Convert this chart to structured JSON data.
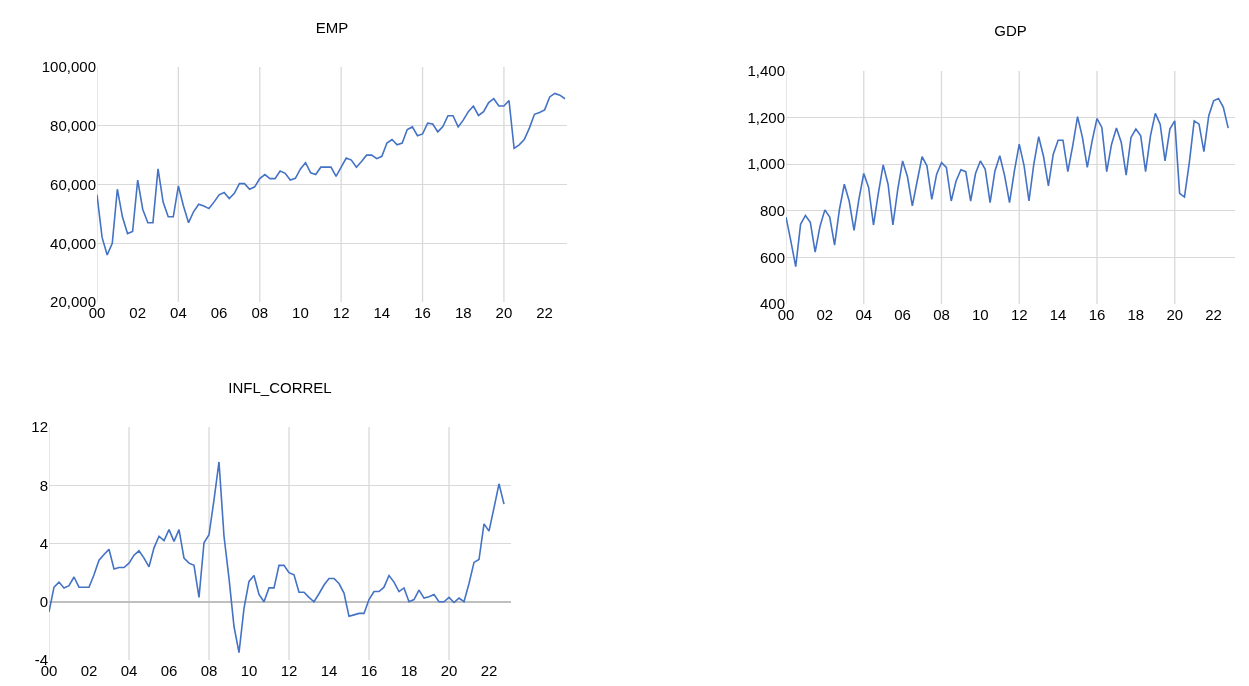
{
  "chart_data": [
    {
      "type": "line",
      "title": "EMP",
      "color": "#4472c4",
      "grid": true,
      "x": [
        2000,
        2000.25,
        2000.5,
        2000.75,
        2001,
        2001.25,
        2001.5,
        2001.75,
        2002,
        2002.25,
        2002.5,
        2002.75,
        2003,
        2003.25,
        2003.5,
        2003.75,
        2004,
        2004.25,
        2004.5,
        2004.75,
        2005,
        2005.25,
        2005.5,
        2005.75,
        2006,
        2006.25,
        2006.5,
        2006.75,
        2007,
        2007.25,
        2007.5,
        2007.75,
        2008,
        2008.25,
        2008.5,
        2008.75,
        2009,
        2009.25,
        2009.5,
        2009.75,
        2010,
        2010.25,
        2010.5,
        2010.75,
        2011,
        2011.25,
        2011.5,
        2011.75,
        2012,
        2012.25,
        2012.5,
        2012.75,
        2013,
        2013.25,
        2013.5,
        2013.75,
        2014,
        2014.25,
        2014.5,
        2014.75,
        2015,
        2015.25,
        2015.5,
        2015.75,
        2016,
        2016.25,
        2016.5,
        2016.75,
        2017,
        2017.25,
        2017.5,
        2017.75,
        2018,
        2018.25,
        2018.5,
        2018.75,
        2019,
        2019.25,
        2019.5,
        2019.75,
        2020,
        2020.25,
        2020.5,
        2020.75,
        2021,
        2021.25,
        2021.5,
        2021.75,
        2022,
        2022.25,
        2022.5,
        2022.75,
        2023
      ],
      "values": [
        56500,
        42000,
        36000,
        40000,
        58400,
        49000,
        43300,
        44000,
        61500,
        51500,
        47000,
        47000,
        65300,
        54000,
        49000,
        49000,
        59500,
        52700,
        47000,
        50800,
        53300,
        52700,
        51800,
        54000,
        56500,
        57300,
        55200,
        57000,
        60300,
        60300,
        58400,
        59200,
        62000,
        63400,
        62000,
        62000,
        64600,
        63800,
        61500,
        62100,
        65300,
        67400,
        64000,
        63400,
        65900,
        65900,
        65900,
        62800,
        65900,
        69000,
        68300,
        65900,
        67800,
        70000,
        70000,
        68800,
        69600,
        74100,
        75300,
        73500,
        74100,
        78700,
        79600,
        76600,
        77200,
        80900,
        80600,
        77900,
        79700,
        83400,
        83400,
        79600,
        81900,
        84800,
        86700,
        83500,
        84800,
        87900,
        89200,
        86700,
        86700,
        88600,
        72300,
        73500,
        75300,
        79200,
        83900,
        84500,
        85400,
        89800,
        91000,
        90400,
        89200
      ],
      "xlim": [
        2000,
        2023.1
      ],
      "xticks": [
        {
          "value": 2000,
          "label": "00"
        },
        {
          "value": 2002,
          "label": "02"
        },
        {
          "value": 2004,
          "label": "04"
        },
        {
          "value": 2006,
          "label": "06"
        },
        {
          "value": 2008,
          "label": "08"
        },
        {
          "value": 2010,
          "label": "10"
        },
        {
          "value": 2012,
          "label": "12"
        },
        {
          "value": 2014,
          "label": "14"
        },
        {
          "value": 2016,
          "label": "16"
        },
        {
          "value": 2018,
          "label": "18"
        },
        {
          "value": 2020,
          "label": "20"
        },
        {
          "value": 2022,
          "label": "22"
        }
      ],
      "ylim": [
        20000,
        100000
      ],
      "yticks": [
        {
          "value": 20000,
          "label": "20,000"
        },
        {
          "value": 40000,
          "label": "40,000"
        },
        {
          "value": 60000,
          "label": "60,000"
        },
        {
          "value": 80000,
          "label": "80,000"
        },
        {
          "value": 100000,
          "label": "100,000"
        }
      ]
    },
    {
      "type": "line",
      "title": "GDP",
      "color": "#4472c4",
      "grid": true,
      "x": [
        2000,
        2000.25,
        2000.5,
        2000.75,
        2001,
        2001.25,
        2001.5,
        2001.75,
        2002,
        2002.25,
        2002.5,
        2002.75,
        2003,
        2003.25,
        2003.5,
        2003.75,
        2004,
        2004.25,
        2004.5,
        2004.75,
        2005,
        2005.25,
        2005.5,
        2005.75,
        2006,
        2006.25,
        2006.5,
        2006.75,
        2007,
        2007.25,
        2007.5,
        2007.75,
        2008,
        2008.25,
        2008.5,
        2008.75,
        2009,
        2009.25,
        2009.5,
        2009.75,
        2010,
        2010.25,
        2010.5,
        2010.75,
        2011,
        2011.25,
        2011.5,
        2011.75,
        2012,
        2012.25,
        2012.5,
        2012.75,
        2013,
        2013.25,
        2013.5,
        2013.75,
        2014,
        2014.25,
        2014.5,
        2014.75,
        2015,
        2015.25,
        2015.5,
        2015.75,
        2016,
        2016.25,
        2016.5,
        2016.75,
        2017,
        2017.25,
        2017.5,
        2017.75,
        2018,
        2018.25,
        2018.5,
        2018.75,
        2019,
        2019.25,
        2019.5,
        2019.75,
        2020,
        2020.25,
        2020.5,
        2020.75,
        2021,
        2021.25,
        2021.5,
        2021.75,
        2022,
        2022.25,
        2022.5,
        2022.75
      ],
      "values": [
        773,
        670,
        560,
        742,
        780,
        751,
        623,
        734,
        804,
        773,
        653,
        806,
        914,
        842,
        716,
        849,
        960,
        900,
        739,
        875,
        997,
        914,
        739,
        892,
        1014,
        946,
        821,
        928,
        1032,
        993,
        849,
        957,
        1007,
        986,
        842,
        928,
        976,
        968,
        842,
        960,
        1014,
        978,
        835,
        971,
        1036,
        950,
        835,
        971,
        1086,
        993,
        842,
        1000,
        1118,
        1033,
        907,
        1043,
        1103,
        1103,
        968,
        1079,
        1204,
        1115,
        986,
        1100,
        1196,
        1158,
        968,
        1086,
        1155,
        1093,
        953,
        1115,
        1151,
        1122,
        968,
        1122,
        1218,
        1172,
        1014,
        1151,
        1186,
        875,
        859,
        1007,
        1186,
        1172,
        1054,
        1208,
        1272,
        1282,
        1244,
        1155
      ],
      "xlim": [
        2000,
        2023.1
      ],
      "xticks": [
        {
          "value": 2000,
          "label": "00"
        },
        {
          "value": 2002,
          "label": "02"
        },
        {
          "value": 2004,
          "label": "04"
        },
        {
          "value": 2006,
          "label": "06"
        },
        {
          "value": 2008,
          "label": "08"
        },
        {
          "value": 2010,
          "label": "10"
        },
        {
          "value": 2012,
          "label": "12"
        },
        {
          "value": 2014,
          "label": "14"
        },
        {
          "value": 2016,
          "label": "16"
        },
        {
          "value": 2018,
          "label": "18"
        },
        {
          "value": 2020,
          "label": "20"
        },
        {
          "value": 2022,
          "label": "22"
        }
      ],
      "ylim": [
        400,
        1400
      ],
      "yticks": [
        400,
        600,
        800,
        {
          "value": 1000,
          "label": "1,000"
        },
        {
          "value": 1200,
          "label": "1,200"
        },
        {
          "value": 1400,
          "label": "1,400"
        }
      ]
    },
    {
      "type": "line",
      "title": "INFL_CORREL",
      "color": "#4472c4",
      "grid": true,
      "x": [
        2000,
        2000.25,
        2000.5,
        2000.75,
        2001,
        2001.25,
        2001.5,
        2001.75,
        2002,
        2002.25,
        2002.5,
        2002.75,
        2003,
        2003.25,
        2003.5,
        2003.75,
        2004,
        2004.25,
        2004.5,
        2004.75,
        2005,
        2005.25,
        2005.5,
        2005.75,
        2006,
        2006.25,
        2006.5,
        2006.75,
        2007,
        2007.25,
        2007.5,
        2007.75,
        2008,
        2008.25,
        2008.5,
        2008.75,
        2009,
        2009.25,
        2009.5,
        2009.75,
        2010,
        2010.25,
        2010.5,
        2010.75,
        2011,
        2011.25,
        2011.5,
        2011.75,
        2012,
        2012.25,
        2012.5,
        2012.75,
        2013,
        2013.25,
        2013.5,
        2013.75,
        2014,
        2014.25,
        2014.5,
        2014.75,
        2015,
        2015.25,
        2015.5,
        2015.75,
        2016,
        2016.25,
        2016.5,
        2016.75,
        2017,
        2017.25,
        2017.5,
        2017.75,
        2018,
        2018.25,
        2018.5,
        2018.75,
        2019,
        2019.25,
        2019.5,
        2019.75,
        2020,
        2020.25,
        2020.5,
        2020.75,
        2021,
        2021.25,
        2021.5,
        2021.75,
        2022,
        2022.25,
        2022.5,
        2022.75
      ],
      "values": [
        -0.7,
        1.0,
        1.35,
        0.95,
        1.1,
        1.7,
        1.0,
        1.0,
        1.0,
        1.85,
        2.85,
        3.25,
        3.6,
        2.25,
        2.35,
        2.35,
        2.65,
        3.2,
        3.5,
        3.0,
        2.4,
        3.7,
        4.5,
        4.2,
        4.95,
        4.15,
        4.95,
        3.0,
        2.65,
        2.5,
        0.3,
        4.05,
        4.6,
        7.0,
        9.6,
        4.5,
        1.6,
        -1.7,
        -3.5,
        -0.45,
        1.4,
        1.8,
        0.5,
        0,
        0.95,
        0.95,
        2.5,
        2.5,
        2.0,
        1.85,
        0.65,
        0.65,
        0.3,
        0,
        0.55,
        1.15,
        1.6,
        1.6,
        1.25,
        0.6,
        -1.0,
        -0.9,
        -0.8,
        -0.8,
        0.15,
        0.7,
        0.7,
        1.0,
        1.8,
        1.35,
        0.7,
        0.95,
        0,
        0.15,
        0.8,
        0.25,
        0.35,
        0.5,
        0,
        0,
        0.3,
        -0.05,
        0.25,
        0,
        1.25,
        2.7,
        2.9,
        5.35,
        4.85,
        6.45,
        8.1,
        6.7
      ],
      "xlim": [
        2000,
        2023.1
      ],
      "xticks": [
        {
          "value": 2000,
          "label": "00"
        },
        {
          "value": 2002,
          "label": "02"
        },
        {
          "value": 2004,
          "label": "04"
        },
        {
          "value": 2006,
          "label": "06"
        },
        {
          "value": 2008,
          "label": "08"
        },
        {
          "value": 2010,
          "label": "10"
        },
        {
          "value": 2012,
          "label": "12"
        },
        {
          "value": 2014,
          "label": "14"
        },
        {
          "value": 2016,
          "label": "16"
        },
        {
          "value": 2018,
          "label": "18"
        },
        {
          "value": 2020,
          "label": "20"
        },
        {
          "value": 2022,
          "label": "22"
        }
      ],
      "ylim": [
        -4,
        12
      ],
      "yticks": [
        -4,
        0,
        4,
        8,
        12
      ]
    }
  ]
}
